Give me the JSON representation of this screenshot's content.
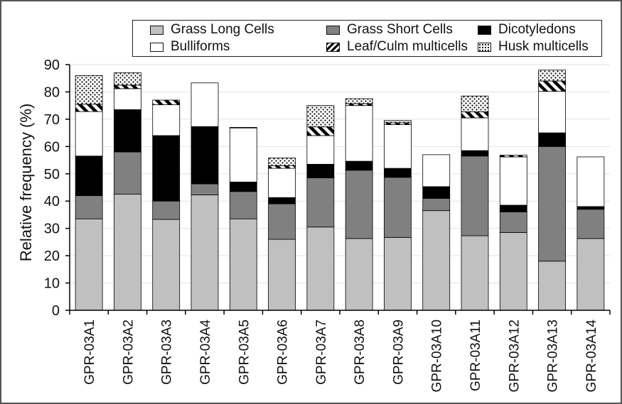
{
  "chart_data": {
    "type": "bar",
    "stacked": true,
    "ylabel": "Relative frequency (%)",
    "xlabel": "",
    "ylim": [
      0,
      90
    ],
    "yticks": [
      0,
      10,
      20,
      30,
      40,
      50,
      60,
      70,
      80,
      90
    ],
    "grid": true,
    "legend_position": "top",
    "categories": [
      "GPR-03A1",
      "GPR-03A2",
      "GPR-03A3",
      "GPR-03A4",
      "GPR-03A5",
      "GPR-03A6",
      "GPR-03A7",
      "GPR-03A8",
      "GPR-03A9",
      "GPR-03A10",
      "GPR-03A11",
      "GPR-03A12",
      "GPR-03A13",
      "GPR-03A14"
    ],
    "series": [
      {
        "name": "Grass Long Cells",
        "fill": "#c0c0c0",
        "values": [
          33.5,
          42.5,
          33.3,
          42.3,
          33.5,
          26.0,
          30.5,
          26.3,
          26.7,
          36.5,
          27.3,
          28.5,
          18.0,
          26.3
        ]
      },
      {
        "name": "Grass Short Cells",
        "fill": "#808080",
        "values": [
          8.5,
          15.5,
          6.7,
          4.0,
          10.0,
          13.0,
          18.0,
          25.0,
          22.0,
          4.5,
          29.2,
          7.5,
          42.0,
          10.7
        ]
      },
      {
        "name": "Dicotyledons",
        "fill": "#000000",
        "values": [
          14.5,
          15.5,
          24.0,
          21.0,
          3.5,
          2.3,
          5.0,
          3.3,
          3.3,
          4.3,
          2.0,
          2.5,
          5.0,
          1.0
        ]
      },
      {
        "name": "Bulliforms",
        "fill": "#ffffff",
        "values": [
          16.3,
          7.7,
          11.3,
          16.0,
          19.8,
          10.7,
          10.5,
          20.4,
          16.0,
          11.7,
          12.0,
          17.7,
          15.2,
          18.2
        ]
      },
      {
        "name": "Leaf/Culm multicells",
        "fill": "hatch",
        "values": [
          2.7,
          1.3,
          1.7,
          0,
          0.2,
          1.0,
          3.2,
          0.7,
          0.7,
          0,
          2.2,
          0.6,
          3.8,
          0
        ]
      },
      {
        "name": "Husk multicells",
        "fill": "dots",
        "values": [
          10.5,
          4.5,
          0,
          0,
          0,
          2.8,
          7.8,
          1.8,
          0.8,
          0,
          5.8,
          0,
          4.0,
          0
        ]
      }
    ]
  }
}
